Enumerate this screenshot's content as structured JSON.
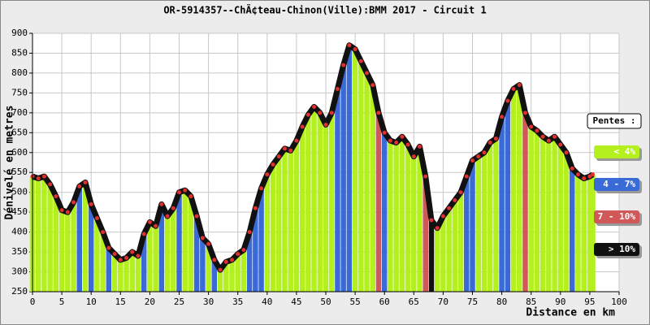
{
  "chart_data": {
    "type": "area-profile",
    "title": "OR-5914357--ChÃ¢teau-Chinon(Ville):BMM 2017 - Circuit 1",
    "y_label": "Dénivelé en metres",
    "x_label": "Distance en km",
    "xlim": [
      0,
      100
    ],
    "xticks": [
      0,
      5,
      10,
      15,
      20,
      25,
      30,
      35,
      40,
      45,
      50,
      55,
      60,
      65,
      70,
      75,
      80,
      85,
      90,
      95,
      100
    ],
    "ylim": [
      250,
      900
    ],
    "yticks": [
      250,
      300,
      350,
      400,
      450,
      500,
      550,
      600,
      650,
      700,
      750,
      800,
      850,
      900
    ],
    "grid": true,
    "line_color": "#111111",
    "marker_color": "#e03030",
    "legend_title": "Pentes :",
    "legend": [
      {
        "label": "< 4%",
        "color": "#b4f01e"
      },
      {
        "label": "4 - 7%",
        "color": "#3a6ad6"
      },
      {
        "label": "7 - 10%",
        "color": "#d05858"
      },
      {
        "label": "> 10%",
        "color": "#111111"
      }
    ],
    "x": [
      0,
      1,
      2,
      3,
      4,
      5,
      6,
      7,
      8,
      9,
      10,
      11,
      12,
      13,
      14,
      15,
      16,
      17,
      18,
      19,
      20,
      21,
      22,
      23,
      24,
      25,
      26,
      27,
      28,
      29,
      30,
      31,
      32,
      33,
      34,
      35,
      36,
      37,
      38,
      39,
      40,
      41,
      42,
      43,
      44,
      45,
      46,
      47,
      48,
      49,
      50,
      51,
      52,
      53,
      54,
      55,
      56,
      57,
      58,
      59,
      60,
      61,
      62,
      63,
      64,
      65,
      66,
      67,
      68,
      69,
      70,
      71,
      72,
      73,
      74,
      75,
      76,
      77,
      78,
      79,
      80,
      81,
      82,
      83,
      84,
      85,
      86,
      87,
      88,
      89,
      90,
      91,
      92,
      93,
      94,
      95,
      95.5
    ],
    "values": [
      540,
      535,
      540,
      520,
      490,
      455,
      450,
      475,
      515,
      525,
      470,
      435,
      400,
      360,
      345,
      330,
      335,
      350,
      340,
      395,
      425,
      415,
      470,
      440,
      460,
      500,
      505,
      490,
      440,
      385,
      370,
      330,
      305,
      325,
      330,
      345,
      355,
      400,
      460,
      510,
      545,
      570,
      590,
      610,
      605,
      630,
      665,
      695,
      715,
      700,
      670,
      700,
      760,
      820,
      870,
      860,
      830,
      800,
      770,
      700,
      650,
      630,
      625,
      640,
      620,
      590,
      615,
      540,
      430,
      410,
      440,
      460,
      480,
      500,
      540,
      580,
      590,
      600,
      625,
      635,
      690,
      730,
      760,
      770,
      700,
      665,
      655,
      640,
      630,
      640,
      620,
      600,
      560,
      545,
      535,
      540,
      545
    ],
    "classes": [
      0,
      0,
      0,
      0,
      0,
      0,
      0,
      0,
      1,
      0,
      1,
      0,
      0,
      1,
      0,
      0,
      0,
      0,
      0,
      1,
      0,
      0,
      1,
      0,
      0,
      1,
      0,
      0,
      1,
      1,
      0,
      1,
      0,
      0,
      0,
      0,
      0,
      1,
      1,
      1,
      0,
      0,
      0,
      0,
      0,
      0,
      0,
      0,
      0,
      0,
      0,
      0,
      1,
      1,
      1,
      0,
      0,
      0,
      0,
      2,
      1,
      0,
      0,
      0,
      0,
      0,
      0,
      2,
      3,
      0,
      0,
      0,
      0,
      0,
      1,
      1,
      0,
      0,
      0,
      0,
      1,
      1,
      0,
      0,
      2,
      0,
      0,
      0,
      0,
      0,
      0,
      0,
      1,
      0,
      0,
      0,
      0
    ]
  }
}
